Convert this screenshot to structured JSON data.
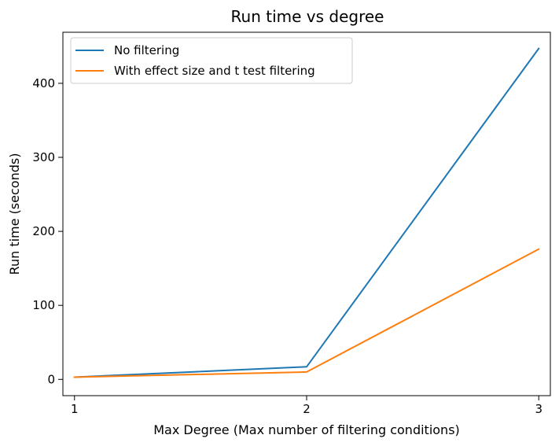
{
  "chart_data": {
    "type": "line",
    "title": "Run time vs degree",
    "xlabel": "Max Degree (Max number of filtering conditions)",
    "ylabel": "Run time (seconds)",
    "x": [
      1,
      2,
      3
    ],
    "xticks": [
      "1",
      "2",
      "3"
    ],
    "yticks": [
      "0",
      "100",
      "200",
      "300",
      "400"
    ],
    "xlim": [
      0.95,
      3.05
    ],
    "ylim": [
      -22,
      469
    ],
    "grid": false,
    "legend_position": "top-left",
    "series": [
      {
        "name": "No filtering",
        "values": [
          3,
          17,
          447
        ],
        "color": "#1f77b4"
      },
      {
        "name": "With effect size and t test filtering",
        "values": [
          3,
          10,
          176
        ],
        "color": "#ff7f0e"
      }
    ]
  }
}
